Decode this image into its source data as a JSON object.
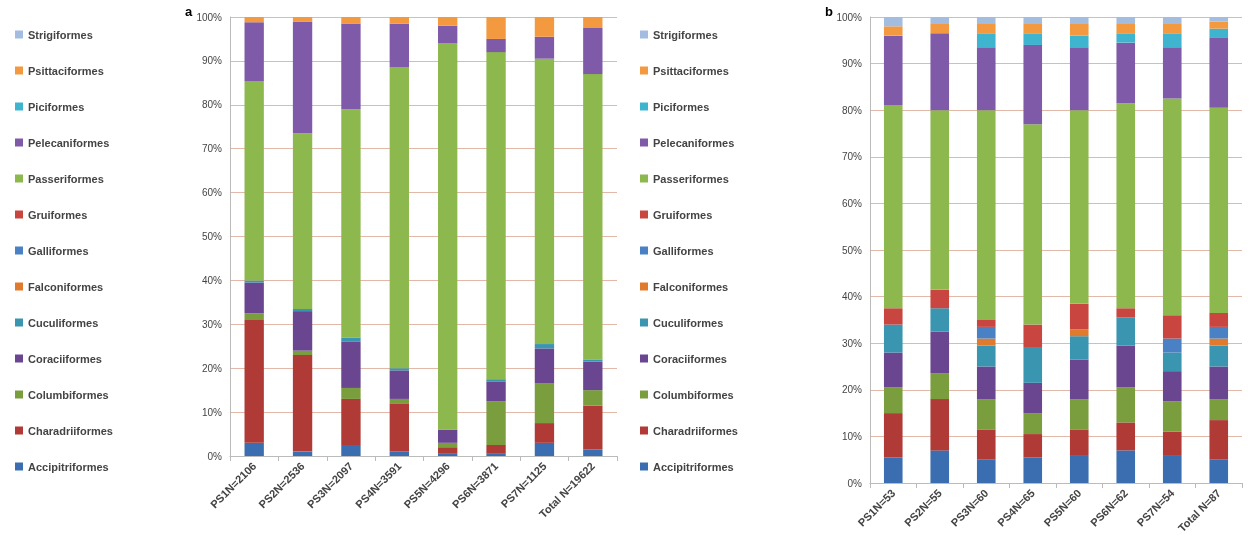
{
  "chart_data": [
    {
      "type": "bar",
      "title": "a",
      "stacked": true,
      "legend": "left",
      "grid": "y",
      "categories": [
        "PS1N=2106",
        "PS2N=2536",
        "PS3N=2097",
        "PS4N=3591",
        "PS5N=4296",
        "PS6N=3871",
        "PS7N=1125",
        "Total N=19622"
      ],
      "ylim": [
        0,
        100
      ],
      "yticks": [
        {
          "value": 0,
          "label": "0%"
        },
        {
          "value": 10,
          "label": "10%"
        },
        {
          "value": 20,
          "label": "20%"
        },
        {
          "value": 30,
          "label": "30%"
        },
        {
          "value": 40,
          "label": "40%"
        },
        {
          "value": 50,
          "label": "50%"
        },
        {
          "value": 60,
          "label": "60%"
        },
        {
          "value": 70,
          "label": "70%"
        },
        {
          "value": 80,
          "label": "80%"
        },
        {
          "value": 90,
          "label": "90%"
        },
        {
          "value": 100,
          "label": "100%"
        }
      ],
      "series": [
        {
          "name": "Accipitriformes",
          "color": "#3a6eb0",
          "values": [
            3,
            1,
            2.5,
            1,
            0.5,
            0.5,
            3,
            1.5
          ]
        },
        {
          "name": "Charadriiformes",
          "color": "#b03a36",
          "values": [
            28,
            22,
            10.5,
            11,
            1.5,
            2,
            4.5,
            10
          ]
        },
        {
          "name": "Columbiformes",
          "color": "#7a9e3e",
          "values": [
            1.5,
            1,
            2.5,
            1,
            1,
            10,
            9,
            3.5
          ]
        },
        {
          "name": "Coraciiformes",
          "color": "#6a4590",
          "values": [
            7,
            9,
            10.5,
            6.5,
            3,
            4.5,
            8,
            6.5
          ]
        },
        {
          "name": "Cuculiformes",
          "color": "#3a95b0",
          "values": [
            0.5,
            0.5,
            1,
            0.5,
            0,
            0.5,
            1,
            0.5
          ]
        },
        {
          "name": "Falconiformes",
          "color": "#e07b2e",
          "values": [
            0,
            0,
            0,
            0,
            0,
            0,
            0,
            0
          ]
        },
        {
          "name": "Galliformes",
          "color": "#4a80c4",
          "values": [
            0,
            0,
            0,
            0,
            0,
            0,
            0,
            0
          ]
        },
        {
          "name": "Gruiformes",
          "color": "#c94540",
          "values": [
            0,
            0,
            0,
            0,
            0,
            0,
            0,
            0
          ]
        },
        {
          "name": "Passeriformes",
          "color": "#8db84e",
          "values": [
            45.3,
            40,
            52,
            68.5,
            88,
            74.5,
            65,
            65
          ]
        },
        {
          "name": "Pelecaniformes",
          "color": "#7f5aa8",
          "values": [
            13.5,
            25.5,
            19.5,
            10,
            4,
            3,
            5,
            10.5
          ]
        },
        {
          "name": "Piciformes",
          "color": "#3fb4cf",
          "values": [
            0,
            0,
            0,
            0,
            0,
            0,
            0,
            0
          ]
        },
        {
          "name": "Psittaciformes",
          "color": "#f39a40",
          "values": [
            1.2,
            1,
            1.5,
            1.5,
            2,
            5,
            4.5,
            2.5
          ]
        },
        {
          "name": "Strigiformes",
          "color": "#a3bde0",
          "values": [
            0,
            0,
            0,
            0,
            0,
            0,
            0,
            0
          ]
        }
      ]
    },
    {
      "type": "bar",
      "title": "b",
      "stacked": true,
      "legend": "left",
      "grid": "y",
      "categories": [
        "PS1N=53",
        "PS2N=55",
        "PS3N=60",
        "PS4N=65",
        "PS5N=60",
        "PS6N=62",
        "PS7N=54",
        "Total N=87"
      ],
      "ylim": [
        0,
        100
      ],
      "yticks": [
        {
          "value": 0,
          "label": "0%"
        },
        {
          "value": 10,
          "label": "10%"
        },
        {
          "value": 20,
          "label": "20%"
        },
        {
          "value": 30,
          "label": "30%"
        },
        {
          "value": 40,
          "label": "40%"
        },
        {
          "value": 50,
          "label": "50%"
        },
        {
          "value": 60,
          "label": "60%"
        },
        {
          "value": 70,
          "label": "70%"
        },
        {
          "value": 80,
          "label": "80%"
        },
        {
          "value": 90,
          "label": "90%"
        },
        {
          "value": 100,
          "label": "100%"
        }
      ],
      "series": [
        {
          "name": "Accipitriformes",
          "color": "#3a6eb0",
          "values": [
            5.5,
            7,
            5,
            5.5,
            6,
            7,
            6,
            5
          ]
        },
        {
          "name": "Charadriiformes",
          "color": "#b03a36",
          "values": [
            9.5,
            11,
            6.5,
            5,
            5.5,
            6,
            5,
            8.5
          ]
        },
        {
          "name": "Columbiformes",
          "color": "#7a9e3e",
          "values": [
            5.5,
            5.5,
            6.5,
            4.5,
            6.5,
            7.5,
            6.5,
            4.5
          ]
        },
        {
          "name": "Coraciiformes",
          "color": "#6a4590",
          "values": [
            7.5,
            9,
            7,
            6.5,
            8.5,
            9,
            6.5,
            7
          ]
        },
        {
          "name": "Cuculiformes",
          "color": "#3a95b0",
          "values": [
            6,
            5,
            4.5,
            7.5,
            5,
            6,
            4,
            4.5
          ]
        },
        {
          "name": "Falconiformes",
          "color": "#e07b2e",
          "values": [
            0,
            0,
            1.5,
            0,
            1.5,
            0,
            0,
            1.5
          ]
        },
        {
          "name": "Galliformes",
          "color": "#4a80c4",
          "values": [
            0,
            0,
            2.5,
            0,
            0,
            0,
            3,
            2.5
          ]
        },
        {
          "name": "Gruiformes",
          "color": "#c94540",
          "values": [
            3.5,
            4,
            1.5,
            5,
            5.5,
            2,
            5,
            3
          ]
        },
        {
          "name": "Passeriformes",
          "color": "#8db84e",
          "values": [
            43.5,
            38.5,
            45,
            43,
            41.5,
            44,
            46.5,
            44
          ]
        },
        {
          "name": "Pelecaniformes",
          "color": "#7f5aa8",
          "values": [
            15,
            16.5,
            13.5,
            17,
            13.5,
            13,
            11,
            15
          ]
        },
        {
          "name": "Piciformes",
          "color": "#3fb4cf",
          "values": [
            0,
            0,
            3,
            2.5,
            2.5,
            2,
            3,
            2
          ]
        },
        {
          "name": "Psittaciformes",
          "color": "#f39a40",
          "values": [
            2,
            2,
            2,
            2,
            2.5,
            2,
            2,
            1.5
          ]
        },
        {
          "name": "Strigiformes",
          "color": "#a3bde0",
          "values": [
            2,
            1.5,
            1.5,
            1.5,
            1.5,
            1.5,
            1.5,
            1
          ]
        }
      ]
    }
  ]
}
